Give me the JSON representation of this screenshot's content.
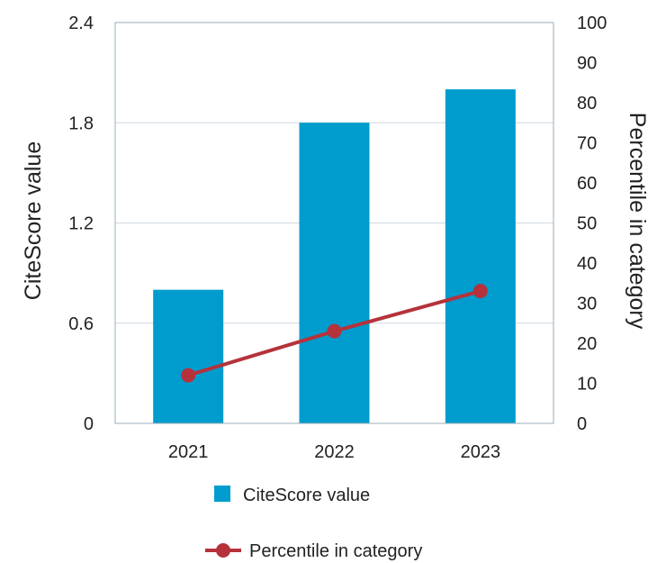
{
  "chart_data": {
    "type": "bar",
    "categories": [
      "2021",
      "2022",
      "2023"
    ],
    "series": [
      {
        "name": "CiteScore value",
        "type": "bar",
        "axis": "left",
        "values": [
          0.8,
          1.8,
          2.0
        ]
      },
      {
        "name": "Percentile in category",
        "type": "line",
        "axis": "right",
        "values": [
          12,
          23,
          33
        ]
      }
    ],
    "ylabel": "CiteScore value",
    "y2label": "Percentile in category",
    "ylim": [
      0,
      2.4
    ],
    "y2lim": [
      0,
      100
    ],
    "yticks": [
      "0",
      "0.6",
      "1.2",
      "1.8",
      "2.4"
    ],
    "y2ticks": [
      "0",
      "10",
      "20",
      "30",
      "40",
      "50",
      "60",
      "70",
      "80",
      "90",
      "100"
    ],
    "grid": true,
    "legend_position": "bottom",
    "colors": {
      "bar": "#009ccd",
      "line": "#b5323a",
      "grid": "#cfd8e0",
      "frame": "#9aaebd"
    }
  }
}
